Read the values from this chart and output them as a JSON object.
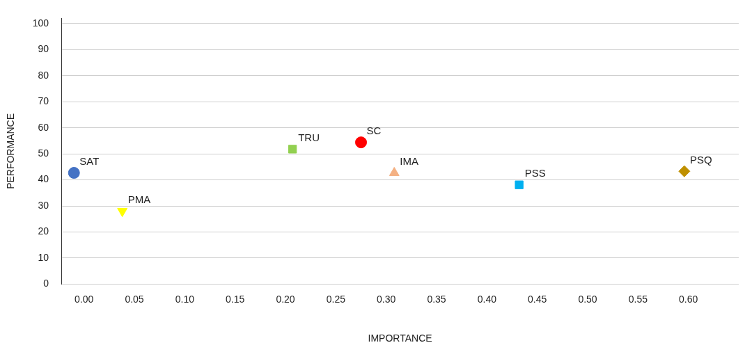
{
  "chart_data": {
    "type": "scatter",
    "xlabel": "IMPORTANCE",
    "ylabel": "PERFORMANCE",
    "xlim": [
      -0.0225,
      0.65
    ],
    "ylim": [
      0,
      102
    ],
    "xticks": [
      {
        "value": 0,
        "label": "0.00"
      },
      {
        "value": 0.05,
        "label": "0.05"
      },
      {
        "value": 0.1,
        "label": "0.10"
      },
      {
        "value": 0.15,
        "label": "0.15"
      },
      {
        "value": 0.2,
        "label": "0.20"
      },
      {
        "value": 0.25,
        "label": "0.25"
      },
      {
        "value": 0.3,
        "label": "0.30"
      },
      {
        "value": 0.35,
        "label": "0.35"
      },
      {
        "value": 0.4,
        "label": "0.40"
      },
      {
        "value": 0.45,
        "label": "0.45"
      },
      {
        "value": 0.5,
        "label": "0.50"
      },
      {
        "value": 0.55,
        "label": "0.55"
      },
      {
        "value": 0.6,
        "label": "0.60"
      }
    ],
    "yticks": [
      0,
      10,
      20,
      30,
      40,
      50,
      60,
      70,
      80,
      90,
      100
    ],
    "grid": "y",
    "legend": false,
    "series": [
      {
        "name": "SAT",
        "color": "#4472c4",
        "marker": "circle",
        "x": [
          -0.01
        ],
        "values": [
          42.7
        ]
      },
      {
        "name": "PMA",
        "color": "#ffff00",
        "marker": "triangle-down",
        "x": [
          0.038
        ],
        "values": [
          28
        ]
      },
      {
        "name": "TRU",
        "color": "#92d050",
        "marker": "square",
        "x": [
          0.207
        ],
        "values": [
          51.8
        ]
      },
      {
        "name": "SC",
        "color": "#ff0000",
        "marker": "circle",
        "x": [
          0.275
        ],
        "values": [
          54.4
        ]
      },
      {
        "name": "IMA",
        "color": "#f4b183",
        "marker": "triangle",
        "x": [
          0.308
        ],
        "values": [
          42.7
        ]
      },
      {
        "name": "PSS",
        "color": "#00b0f0",
        "marker": "square",
        "x": [
          0.432
        ],
        "values": [
          38.1
        ]
      },
      {
        "name": "PSQ",
        "color": "#bf9000",
        "marker": "diamond",
        "x": [
          0.596
        ],
        "values": [
          43.3
        ]
      }
    ]
  }
}
